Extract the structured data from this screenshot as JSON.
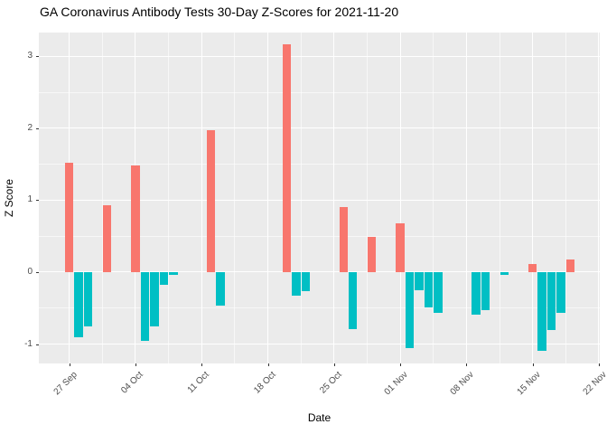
{
  "title": "GA Coronavirus Antibody Tests 30-Day Z-Scores for 2021-11-20",
  "chart_data": {
    "type": "bar",
    "title": "GA Coronavirus Antibody Tests 30-Day Z-Scores for 2021-11-20",
    "xlabel": "Date",
    "ylabel": "Z Score",
    "legend": false,
    "grid": true,
    "panel_bg": "#EBEBEB",
    "grid_color": "#FFFFFF",
    "positive_color": "#F8766D",
    "negative_color": "#00BFC4",
    "tick_label_color": "#4D4D4D",
    "ylim": [
      -1.27,
      3.33
    ],
    "xlim_days": [
      -3.22,
      56.1
    ],
    "bar_width_days": 0.9,
    "y_ticks": [
      {
        "value": -1,
        "label": "-1"
      },
      {
        "value": 0,
        "label": "0"
      },
      {
        "value": 1,
        "label": "1"
      },
      {
        "value": 2,
        "label": "2"
      },
      {
        "value": 3,
        "label": "3"
      }
    ],
    "y_minor_ticks": [
      -0.5,
      0.5,
      1.5,
      2.5
    ],
    "x_ticks": [
      {
        "day": 0,
        "label": "27 Sep"
      },
      {
        "day": 7,
        "label": "04 Oct"
      },
      {
        "day": 14,
        "label": "11 Oct"
      },
      {
        "day": 21,
        "label": "18 Oct"
      },
      {
        "day": 28,
        "label": "25 Oct"
      },
      {
        "day": 35,
        "label": "01 Nov"
      },
      {
        "day": 42,
        "label": "08 Nov"
      },
      {
        "day": 49,
        "label": "15 Nov"
      },
      {
        "day": 56,
        "label": "22 Nov"
      }
    ],
    "x_minor_days": [
      3.5,
      10.5,
      17.5,
      24.5,
      31.5,
      38.5,
      45.5,
      52.5
    ],
    "bars": [
      {
        "date": "27 Sep",
        "day": 0,
        "value": 1.52
      },
      {
        "date": "28 Sep",
        "day": 1,
        "value": -0.91
      },
      {
        "date": "29 Sep",
        "day": 2,
        "value": -0.75
      },
      {
        "date": "01 Oct",
        "day": 4,
        "value": 0.93
      },
      {
        "date": "04 Oct",
        "day": 7,
        "value": 1.48
      },
      {
        "date": "05 Oct",
        "day": 8,
        "value": -0.95
      },
      {
        "date": "06 Oct",
        "day": 9,
        "value": -0.75
      },
      {
        "date": "07 Oct",
        "day": 10,
        "value": -0.18
      },
      {
        "date": "08 Oct",
        "day": 11,
        "value": -0.04
      },
      {
        "date": "12 Oct",
        "day": 15,
        "value": 1.97
      },
      {
        "date": "13 Oct",
        "day": 16,
        "value": -0.47
      },
      {
        "date": "20 Oct",
        "day": 23,
        "value": 3.17
      },
      {
        "date": "21 Oct",
        "day": 24,
        "value": -0.33
      },
      {
        "date": "22 Oct",
        "day": 25,
        "value": -0.26
      },
      {
        "date": "26 Oct",
        "day": 29,
        "value": 0.9
      },
      {
        "date": "27 Oct",
        "day": 30,
        "value": -0.79
      },
      {
        "date": "29 Oct",
        "day": 32,
        "value": 0.49
      },
      {
        "date": "01 Nov",
        "day": 35,
        "value": 0.68
      },
      {
        "date": "02 Nov",
        "day": 36,
        "value": -1.06
      },
      {
        "date": "03 Nov",
        "day": 37,
        "value": -0.25
      },
      {
        "date": "04 Nov",
        "day": 38,
        "value": -0.49
      },
      {
        "date": "05 Nov",
        "day": 39,
        "value": -0.57
      },
      {
        "date": "09 Nov",
        "day": 43,
        "value": -0.59
      },
      {
        "date": "10 Nov",
        "day": 44,
        "value": -0.53
      },
      {
        "date": "12 Nov",
        "day": 46,
        "value": -0.04
      },
      {
        "date": "15 Nov",
        "day": 49,
        "value": 0.11
      },
      {
        "date": "16 Nov",
        "day": 50,
        "value": -1.1
      },
      {
        "date": "17 Nov",
        "day": 51,
        "value": -0.8
      },
      {
        "date": "18 Nov",
        "day": 52,
        "value": -0.57
      },
      {
        "date": "19 Nov",
        "day": 53,
        "value": 0.18
      }
    ]
  }
}
